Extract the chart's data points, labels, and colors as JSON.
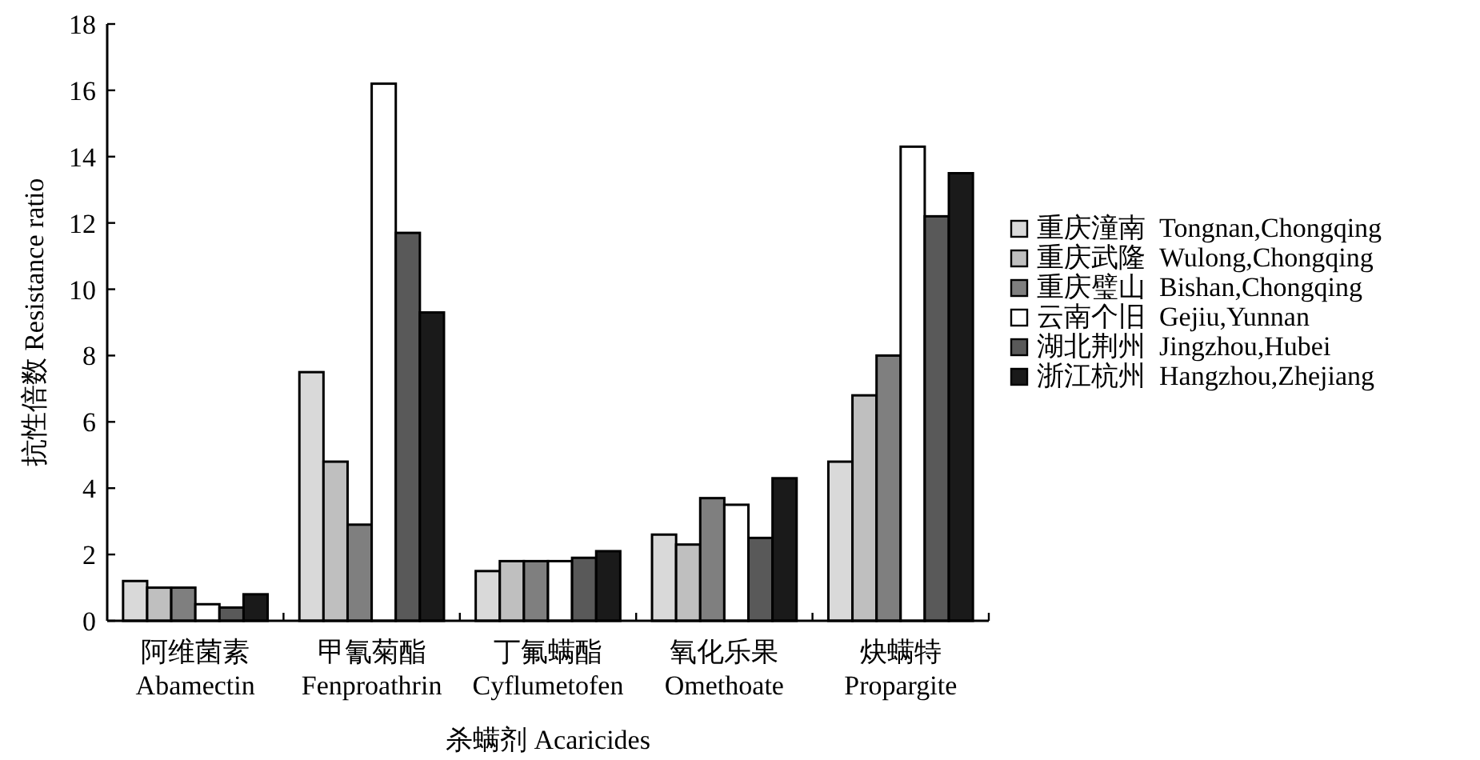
{
  "chart_data": {
    "type": "bar",
    "xlabel": "杀螨剂  Acaricides",
    "ylabel": "抗性倍数  Resistance ratio",
    "categories": [
      "阿维菌素\nAbamectin",
      "甲氰菊酯\nFenproathrin",
      "丁氟螨酯\nCyflumetofen",
      "氧化乐果\nOmethoate",
      "炔螨特\nPropargite"
    ],
    "series": [
      {
        "name": "重庆潼南  Tongnan,Chongqing",
        "color": "#d9d9d9",
        "values": [
          1.2,
          7.5,
          1.5,
          2.6,
          4.8
        ]
      },
      {
        "name": "重庆武隆  Wulong,Chongqing",
        "color": "#bfbfbf",
        "values": [
          1.0,
          4.8,
          1.8,
          2.3,
          6.8
        ]
      },
      {
        "name": "重庆璧山  Bishan,Chongqing",
        "color": "#7f7f7f",
        "values": [
          1.0,
          2.9,
          1.8,
          3.7,
          8.0
        ]
      },
      {
        "name": "云南个旧  Gejiu,Yunnan",
        "color": "#ffffff",
        "values": [
          0.5,
          16.2,
          1.8,
          3.5,
          14.3
        ]
      },
      {
        "name": "湖北荆州  Jingzhou,Hubei",
        "color": "#595959",
        "values": [
          0.4,
          11.7,
          1.9,
          2.5,
          12.2
        ]
      },
      {
        "name": "浙江杭州  Hangzhou,Zhejiang",
        "color": "#1a1a1a",
        "values": [
          0.8,
          9.3,
          2.1,
          4.3,
          13.5
        ]
      }
    ],
    "ylim": [
      0,
      18
    ],
    "yticks": [
      0,
      2,
      4,
      6,
      8,
      10,
      12,
      14,
      16,
      18
    ],
    "grid": false,
    "legend": "right"
  }
}
